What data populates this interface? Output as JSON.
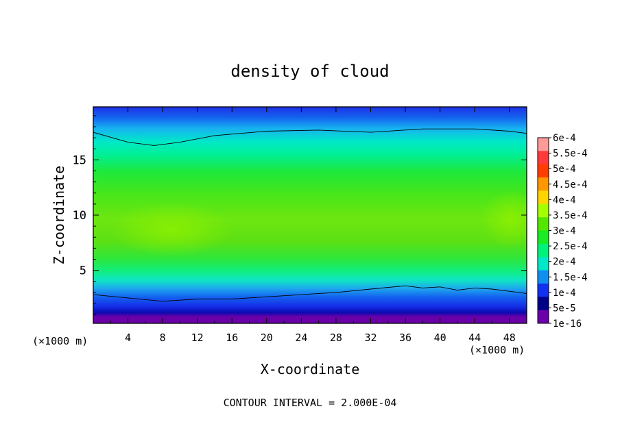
{
  "chart_data": {
    "type": "heatmap",
    "title": "density of cloud",
    "xlabel": "X-coordinate",
    "ylabel": "Z-coordinate",
    "x_unit": "(×1000 m)",
    "y_unit": "(×1000 m)",
    "xlim": [
      0,
      50
    ],
    "ylim": [
      0.2,
      19.8
    ],
    "x_ticks": [
      "4",
      "8",
      "12",
      "16",
      "20",
      "24",
      "28",
      "32",
      "36",
      "40",
      "44",
      "48"
    ],
    "y_ticks": [
      "5",
      "10",
      "15"
    ],
    "x_tick_values": [
      4,
      8,
      12,
      16,
      20,
      24,
      28,
      32,
      36,
      40,
      44,
      48
    ],
    "y_tick_values": [
      5,
      10,
      15
    ],
    "footer": "CONTOUR INTERVAL = 2.000E-04",
    "colorbar": {
      "labels": [
        "6e-4",
        "5.5e-4",
        "5e-4",
        "4.5e-4",
        "4e-4",
        "3.5e-4",
        "3e-4",
        "2.5e-4",
        "2e-4",
        "1.5e-4",
        "1e-4",
        "5e-5",
        "1e-16"
      ],
      "colors": [
        "#ff9a9a",
        "#ff3a3a",
        "#ff3d00",
        "#ff9800",
        "#ffd500",
        "#a6ff00",
        "#55e600",
        "#1aeb22",
        "#00f27a",
        "#00e8c8",
        "#0f8ff0",
        "#1230f0",
        "#000088",
        "#6a00a8"
      ]
    },
    "contours": [
      {
        "level": "2e-4",
        "x": [
          0,
          4,
          7,
          10,
          14,
          20,
          26,
          32,
          38,
          44,
          48,
          50
        ],
        "z": [
          17.5,
          16.6,
          16.3,
          16.6,
          17.2,
          17.6,
          17.7,
          17.5,
          17.8,
          17.8,
          17.6,
          17.4
        ]
      },
      {
        "level": "1e-4",
        "x": [
          0,
          4,
          8,
          12,
          16,
          20,
          24,
          28,
          32,
          36,
          38,
          40,
          42,
          44,
          46,
          48,
          50
        ],
        "z": [
          2.8,
          2.5,
          2.2,
          2.4,
          2.4,
          2.6,
          2.8,
          3.0,
          3.3,
          3.6,
          3.4,
          3.5,
          3.2,
          3.4,
          3.3,
          3.1,
          2.9
        ]
      }
    ],
    "field_samples": [
      {
        "x": 10,
        "z": 8,
        "value": "3.8e-4"
      },
      {
        "x": 48,
        "z": 9,
        "value": "3.8e-4"
      },
      {
        "x": 25,
        "z": 12,
        "value": "3e-4"
      },
      {
        "x": 25,
        "z": 18.5,
        "value": "1.5e-4"
      },
      {
        "x": 25,
        "z": 1,
        "value": "5e-5"
      }
    ]
  }
}
